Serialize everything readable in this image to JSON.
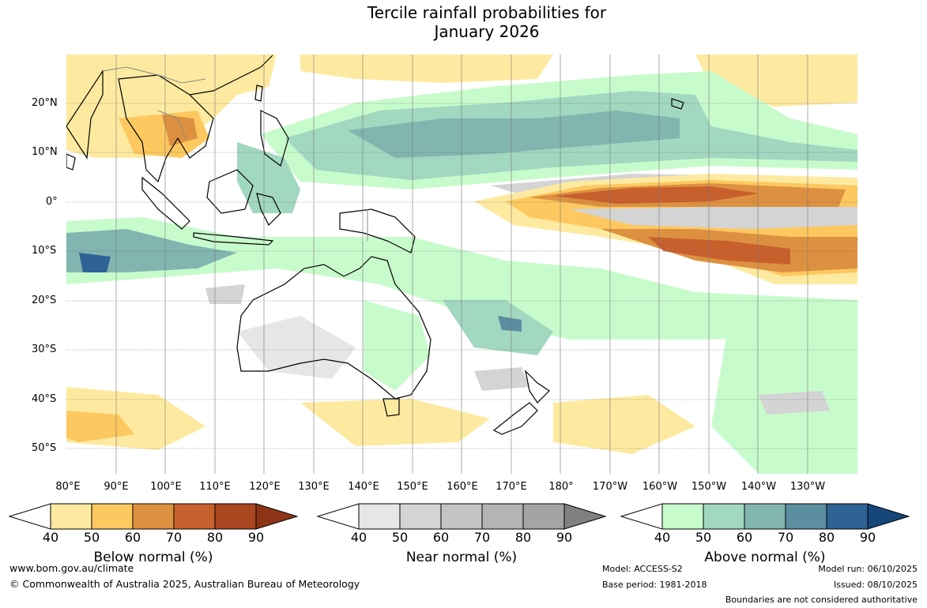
{
  "title_line1": "Tercile rainfall probabilities for",
  "title_line2": "January 2026",
  "lat_labels": [
    "20°N",
    "10°N",
    "0°",
    "10°S",
    "20°S",
    "30°S",
    "40°S",
    "50°S"
  ],
  "lon_labels": [
    "80°E",
    "90°E",
    "100°E",
    "110°E",
    "120°E",
    "130°E",
    "140°E",
    "150°E",
    "160°E",
    "170°E",
    "180°",
    "170°W",
    "160°W",
    "150°W",
    "140°W",
    "130°W"
  ],
  "colorbars": {
    "below": {
      "title": "Below normal (%)",
      "ticks": [
        "40",
        "50",
        "60",
        "70",
        "80",
        "90"
      ],
      "colors": [
        "#ffffff",
        "#fdeaa0",
        "#fdc860",
        "#dd9140",
        "#c8602e",
        "#aa4620",
        "#8e3416"
      ]
    },
    "near": {
      "title": "Near normal (%)",
      "ticks": [
        "40",
        "50",
        "60",
        "70",
        "80",
        "90"
      ],
      "colors": [
        "#ffffff",
        "#e6e6e6",
        "#d4d4d4",
        "#c4c4c4",
        "#b4b4b4",
        "#a4a4a4",
        "#808080"
      ]
    },
    "above": {
      "title": "Above normal (%)",
      "ticks": [
        "40",
        "50",
        "60",
        "70",
        "80",
        "90"
      ],
      "colors": [
        "#ffffff",
        "#c8fbcc",
        "#a2d7c0",
        "#82b5b0",
        "#5a8ea0",
        "#2f6295",
        "#16457a"
      ]
    }
  },
  "footer": {
    "url": "www.bom.gov.au/climate",
    "copyright": "© Commonwealth of Australia 2025, Australian Bureau of Meteorology",
    "model": "Model: ACCESS-S2",
    "base_period": "Base period: 1981-2018",
    "model_run": "Model run: 06/10/2025",
    "issued": "Issued: 08/10/2025",
    "boundaries": "Boundaries are not considered authoritative"
  }
}
